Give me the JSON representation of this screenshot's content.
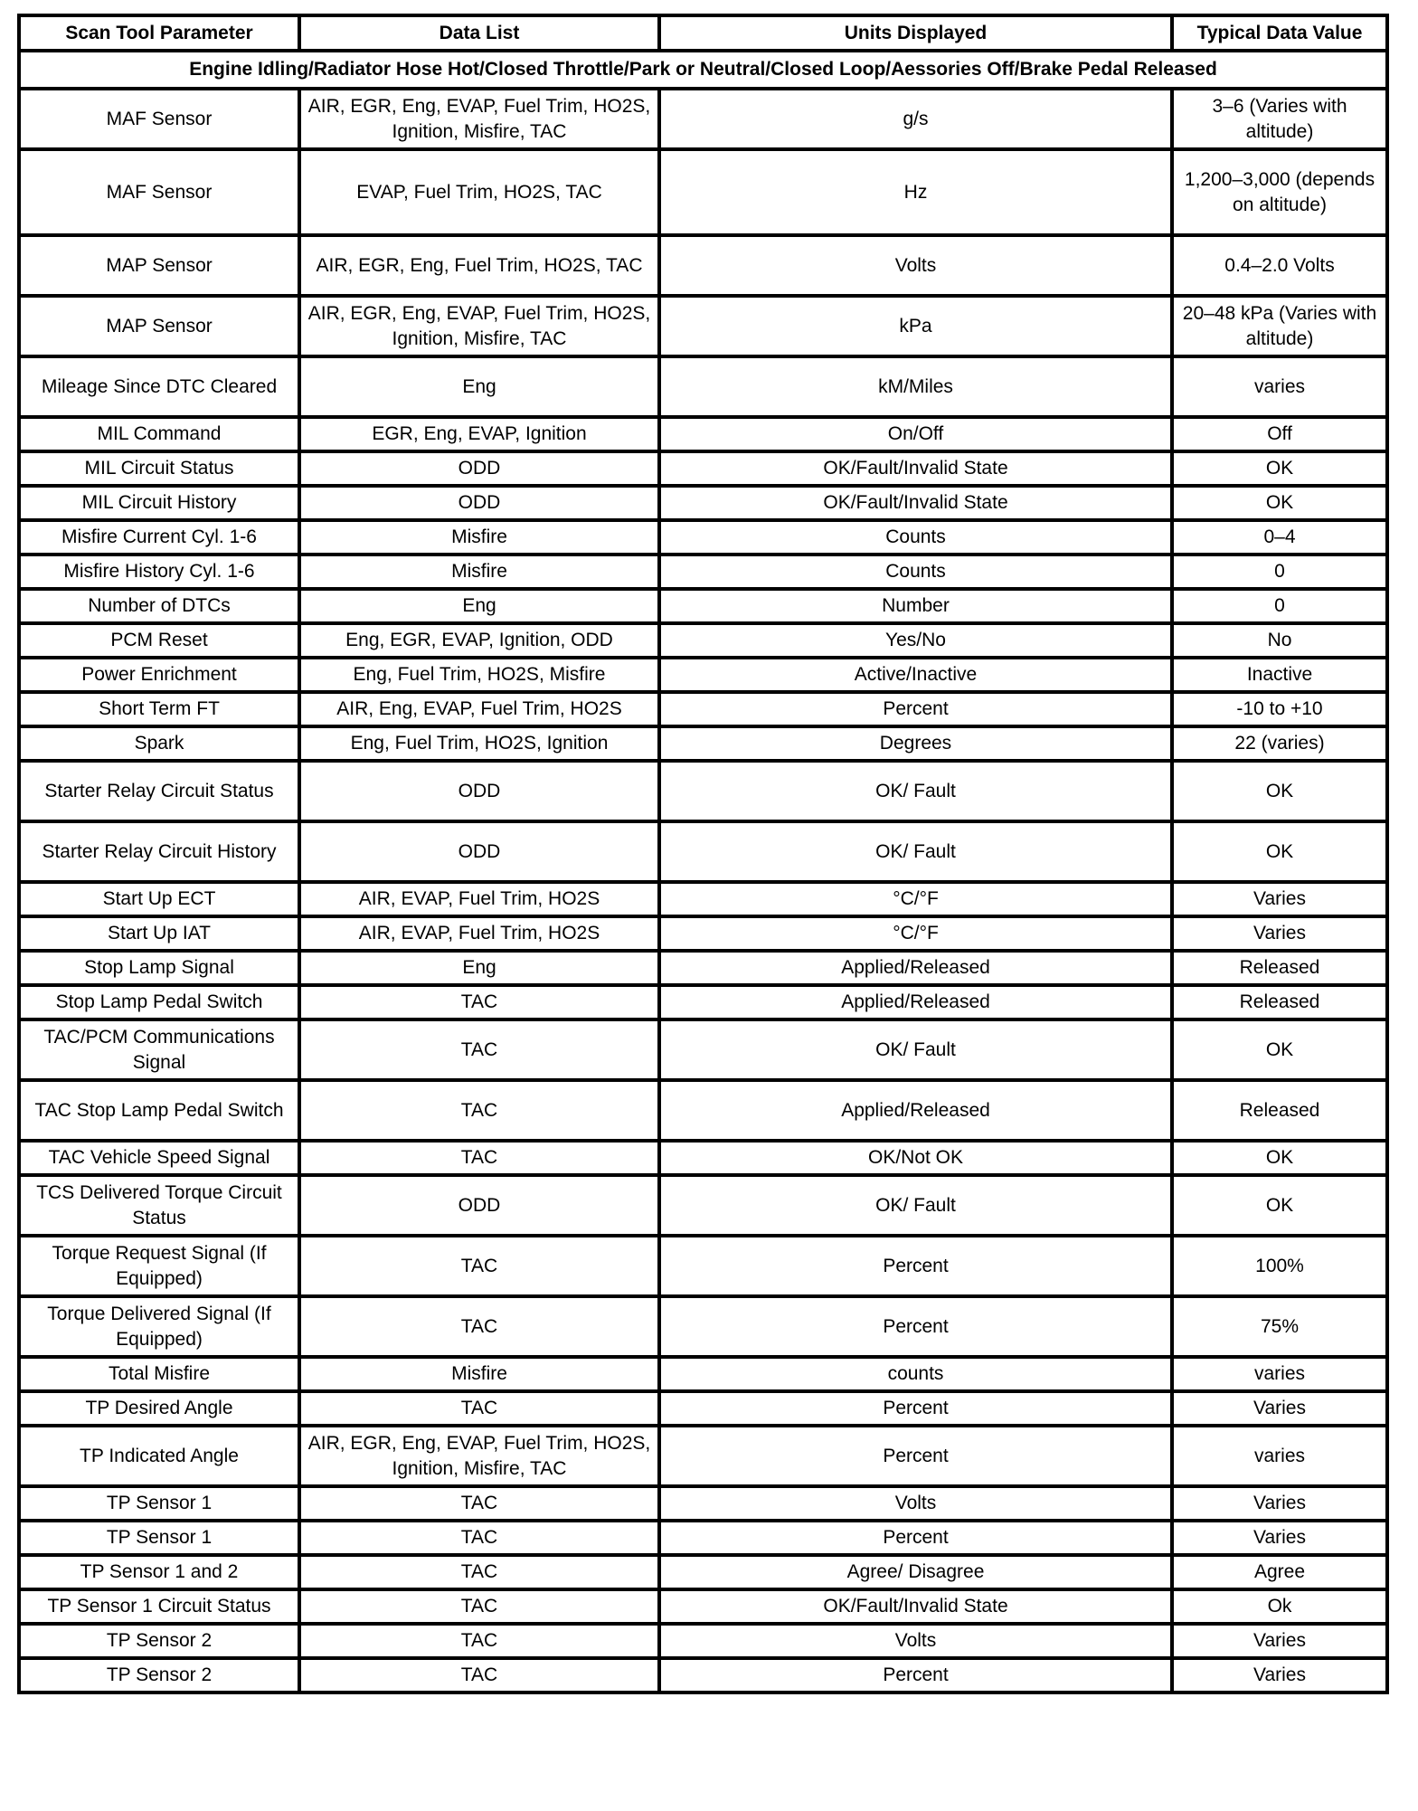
{
  "headers": [
    "Scan Tool Parameter",
    "Data List",
    "Units Displayed",
    "Typical Data Value"
  ],
  "condition": "Engine Idling/Radiator Hose Hot/Closed Throttle/Park or Neutral/Closed Loop/Aessories Off/Brake Pedal Released",
  "rows": [
    [
      "MAF Sensor",
      "AIR, EGR, Eng, EVAP, Fuel Trim, HO2S, Ignition, Misfire, TAC",
      "g/s",
      "3–6 (Varies with altitude)"
    ],
    [
      "MAF Sensor",
      "EVAP, Fuel Trim, HO2S, TAC",
      "Hz",
      "1,200–3,000 (depends on altitude)"
    ],
    [
      "MAP Sensor",
      "AIR, EGR, Eng, Fuel Trim, HO2S, TAC",
      "Volts",
      "0.4–2.0 Volts"
    ],
    [
      "MAP Sensor",
      "AIR, EGR, Eng, EVAP, Fuel Trim, HO2S, Ignition, Misfire, TAC",
      "kPa",
      "20–48 kPa (Varies with altitude)"
    ],
    [
      "Mileage Since DTC Cleared",
      "Eng",
      "kM/Miles",
      "varies"
    ],
    [
      "MIL Command",
      "EGR, Eng, EVAP, Ignition",
      "On/Off",
      "Off"
    ],
    [
      "MIL Circuit Status",
      "ODD",
      "OK/Fault/Invalid State",
      "OK"
    ],
    [
      "MIL Circuit History",
      "ODD",
      "OK/Fault/Invalid State",
      "OK"
    ],
    [
      "Misfire Current Cyl. 1-6",
      "Misfire",
      "Counts",
      "0–4"
    ],
    [
      "Misfire History Cyl. 1-6",
      "Misfire",
      "Counts",
      "0"
    ],
    [
      "Number of DTCs",
      "Eng",
      "Number",
      "0"
    ],
    [
      "PCM Reset",
      "Eng, EGR, EVAP, Ignition, ODD",
      "Yes/No",
      "No"
    ],
    [
      "Power Enrichment",
      "Eng, Fuel Trim, HO2S, Misfire",
      "Active/Inactive",
      "Inactive"
    ],
    [
      "Short Term FT",
      "AIR, Eng, EVAP, Fuel Trim, HO2S",
      "Percent",
      "-10 to +10"
    ],
    [
      "Spark",
      "Eng, Fuel Trim, HO2S, Ignition",
      "Degrees",
      "22 (varies)"
    ],
    [
      "Starter Relay Circuit Status",
      "ODD",
      "OK/ Fault",
      "OK"
    ],
    [
      "Starter Relay Circuit History",
      "ODD",
      "OK/ Fault",
      "OK"
    ],
    [
      "Start Up ECT",
      "AIR, EVAP, Fuel Trim, HO2S",
      "°C/°F",
      "Varies"
    ],
    [
      "Start Up IAT",
      "AIR, EVAP, Fuel Trim, HO2S",
      "°C/°F",
      "Varies"
    ],
    [
      "Stop Lamp Signal",
      "Eng",
      "Applied/Released",
      "Released"
    ],
    [
      "Stop Lamp Pedal Switch",
      "TAC",
      "Applied/Released",
      "Released"
    ],
    [
      "TAC/PCM Communications Signal",
      "TAC",
      "OK/ Fault",
      "OK"
    ],
    [
      "TAC Stop Lamp Pedal Switch",
      "TAC",
      "Applied/Released",
      "Released"
    ],
    [
      "TAC Vehicle Speed Signal",
      "TAC",
      "OK/Not OK",
      "OK"
    ],
    [
      "TCS Delivered Torque Circuit Status",
      "ODD",
      "OK/ Fault",
      "OK"
    ],
    [
      "Torque Request Signal (If Equipped)",
      "TAC",
      "Percent",
      "100%"
    ],
    [
      "Torque Delivered Signal (If Equipped)",
      "TAC",
      "Percent",
      "75%"
    ],
    [
      "Total Misfire",
      "Misfire",
      "counts",
      "varies"
    ],
    [
      "TP Desired Angle",
      "TAC",
      "Percent",
      "Varies"
    ],
    [
      "TP Indicated Angle",
      "AIR, EGR, Eng, EVAP, Fuel Trim, HO2S, Ignition, Misfire, TAC",
      "Percent",
      "varies"
    ],
    [
      "TP Sensor 1",
      "TAC",
      "Volts",
      "Varies"
    ],
    [
      "TP Sensor 1",
      "TAC",
      "Percent",
      "Varies"
    ],
    [
      "TP Sensor 1 and 2",
      "TAC",
      "Agree/ Disagree",
      "Agree"
    ],
    [
      "TP Sensor 1 Circuit Status",
      "TAC",
      "OK/Fault/Invalid State",
      "Ok"
    ],
    [
      "TP Sensor 2",
      "TAC",
      "Volts",
      "Varies"
    ],
    [
      "TP Sensor 2",
      "TAC",
      "Percent",
      "Varies"
    ]
  ]
}
